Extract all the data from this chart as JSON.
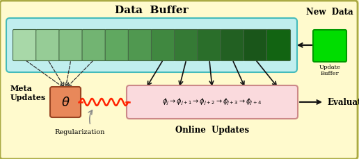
{
  "outer_bg": "#FFFACD",
  "outer_border": "#AAAA44",
  "title": "Data  Buffer",
  "new_data_label": "New  Data",
  "update_buffer_label": "Update\nBuffer",
  "meta_updates_label": "Meta\nUpdates",
  "regularization_label": "Regularization",
  "online_updates_label": "Online  Updates",
  "evaluate_label": "Evaluate",
  "theta_label": "$\\theta$",
  "phi_sequence": "$\\phi_{j}\\rightarrow\\phi_{j+1}\\rightarrow\\phi_{j+2}\\rightarrow\\phi_{j+3}\\rightarrow\\phi_{j+4}$",
  "buffer_colors": [
    "#A8D8A8",
    "#96CC96",
    "#84C084",
    "#72B472",
    "#60A860",
    "#509850",
    "#408840",
    "#357A35",
    "#2A6E2A",
    "#226022",
    "#1A561A",
    "#126412"
  ],
  "buffer_container_color": "#C0EEEE",
  "buffer_container_edge": "#44BBBB",
  "new_data_color": "#00DD00",
  "new_data_edge": "#009900",
  "theta_box_color": "#E8885A",
  "theta_box_edge": "#994422",
  "phi_box_color": "#FADADD",
  "phi_box_edge": "#CC8888",
  "spring_color": "#FF2200",
  "arrow_color": "#111111",
  "dashed_arrow_color": "#333333",
  "reg_arrow_color": "#888888",
  "fig_w": 5.16,
  "fig_h": 2.3,
  "dpi": 100
}
